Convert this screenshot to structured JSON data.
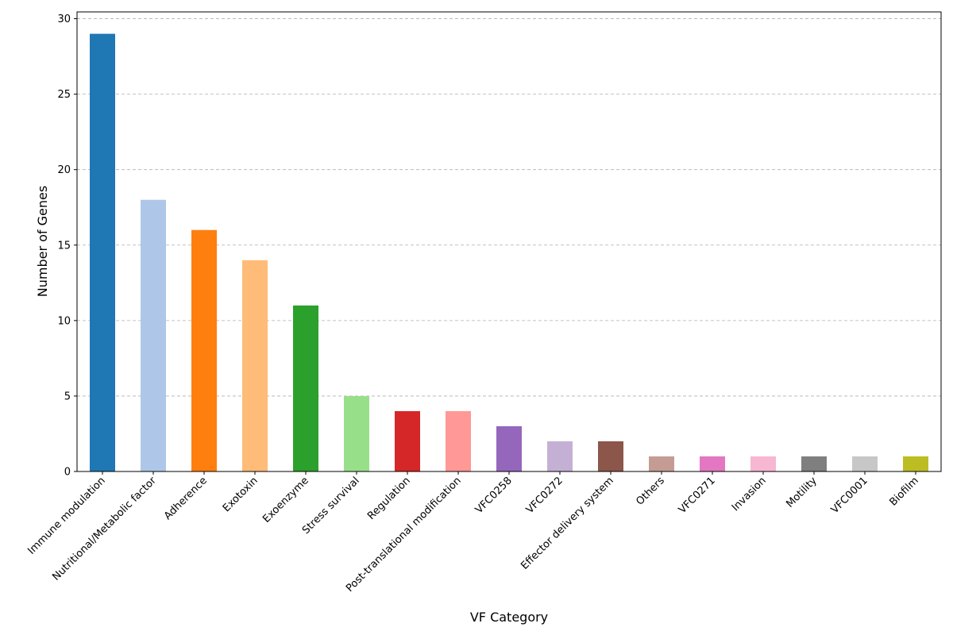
{
  "chart_data": {
    "type": "bar",
    "xlabel": "VF Category",
    "ylabel": "Number of Genes",
    "categories": [
      "Immune modulation",
      "Nutritional/Metabolic factor",
      "Adherence",
      "Exotoxin",
      "Exoenzyme",
      "Stress survival",
      "Regulation",
      "Post-translational modification",
      "VFC0258",
      "VFC0272",
      "Effector delivery system",
      "Others",
      "VFC0271",
      "Invasion",
      "Motility",
      "VFC0001",
      "Biofilm"
    ],
    "values": [
      29,
      18,
      16,
      14,
      11,
      5,
      4,
      4,
      3,
      2,
      2,
      1,
      1,
      1,
      1,
      1,
      1
    ],
    "colors": [
      "#1f77b4",
      "#aec7e8",
      "#ff7f0e",
      "#ffbb78",
      "#2ca02c",
      "#98df8a",
      "#d62728",
      "#ff9896",
      "#9467bd",
      "#c5b0d5",
      "#8c564b",
      "#c49c94",
      "#e377c2",
      "#f7b6d2",
      "#7f7f7f",
      "#c7c7c7",
      "#bcbd22"
    ],
    "ylim": [
      0,
      30.45
    ],
    "yticks": [
      0,
      5,
      10,
      15,
      20,
      25,
      30
    ],
    "grid": true
  }
}
